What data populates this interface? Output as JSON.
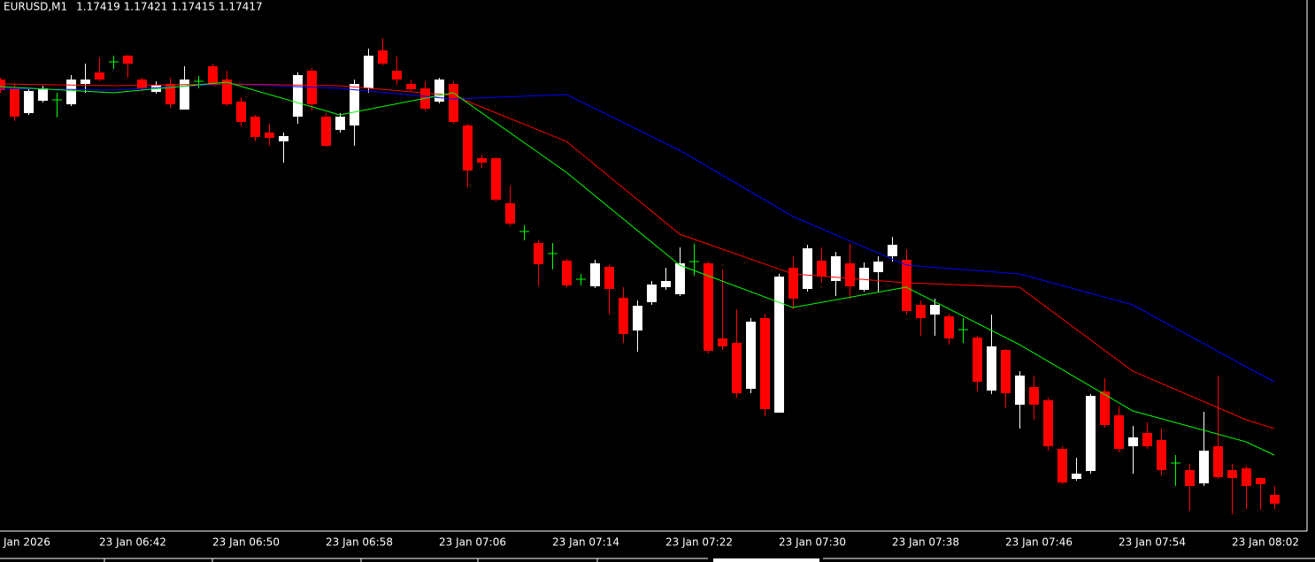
{
  "chart_data": {
    "type": "candlestick",
    "title": "EURUSD,M1",
    "header_values": [
      1.17419,
      1.17421,
      1.17415,
      1.17417
    ],
    "axis_start_label": "Jan 2026",
    "up_color": "#ffffff",
    "down_color": "#ff0000",
    "doji_color": "#00ff00",
    "ylim": [
      1.1738,
      1.1798
    ],
    "categories": [
      null,
      null,
      null,
      null,
      null,
      null,
      null,
      "23 Jan 06:42",
      null,
      null,
      null,
      null,
      null,
      null,
      null,
      "23 Jan 06:50",
      null,
      null,
      null,
      null,
      null,
      null,
      null,
      "23 Jan 06:58",
      null,
      null,
      null,
      null,
      null,
      null,
      null,
      "23 Jan 07:06",
      null,
      null,
      null,
      null,
      null,
      null,
      null,
      "23 Jan 07:14",
      null,
      null,
      null,
      null,
      null,
      null,
      null,
      "23 Jan 07:22",
      null,
      null,
      null,
      null,
      null,
      null,
      null,
      "23 Jan 07:30",
      null,
      null,
      null,
      null,
      null,
      null,
      null,
      "23 Jan 07:38",
      null,
      null,
      null,
      null,
      null,
      null,
      null,
      "23 Jan 07:46",
      null,
      null,
      null,
      null,
      null,
      null,
      null,
      "23 Jan 07:54",
      null,
      null,
      null,
      null,
      null,
      null,
      null,
      "23 Jan 08:02",
      null,
      null,
      null
    ],
    "candles": [
      [
        1.1789,
        1.17892,
        1.17875,
        1.17878
      ],
      [
        1.1788,
        1.17885,
        1.17843,
        1.17848
      ],
      [
        1.17852,
        1.1788,
        1.1785,
        1.17877
      ],
      [
        1.17866,
        1.17883,
        1.17864,
        1.1788
      ],
      [
        1.17867,
        1.17875,
        1.17847,
        1.17867
      ],
      [
        1.17862,
        1.17895,
        1.1786,
        1.1789
      ],
      [
        1.17885,
        1.17908,
        1.17875,
        1.1789
      ],
      [
        1.17898,
        1.17915,
        1.17888,
        1.1789
      ],
      [
        1.1791,
        1.17917,
        1.17902,
        1.1791
      ],
      [
        1.17917,
        1.17918,
        1.17892,
        1.17908
      ],
      [
        1.1789,
        1.17892,
        1.17877,
        1.1788
      ],
      [
        1.17876,
        1.17888,
        1.17874,
        1.17884
      ],
      [
        1.17885,
        1.17892,
        1.17858,
        1.17862
      ],
      [
        1.17856,
        1.17905,
        1.17856,
        1.1789
      ],
      [
        1.17888,
        1.17894,
        1.1788,
        1.17888
      ],
      [
        1.17905,
        1.17908,
        1.17883,
        1.17885
      ],
      [
        1.1789,
        1.179,
        1.1786,
        1.17862
      ],
      [
        1.17865,
        1.1787,
        1.17837,
        1.17842
      ],
      [
        1.17848,
        1.1785,
        1.1782,
        1.17825
      ],
      [
        1.1783,
        1.1784,
        1.17815,
        1.17824
      ],
      [
        1.1782,
        1.1783,
        1.17796,
        1.17826
      ],
      [
        1.17848,
        1.17898,
        1.1784,
        1.17895
      ],
      [
        1.179,
        1.17903,
        1.17855,
        1.17862
      ],
      [
        1.17848,
        1.17852,
        1.17814,
        1.17815
      ],
      [
        1.17833,
        1.17852,
        1.1783,
        1.17848
      ],
      [
        1.17838,
        1.1789,
        1.17815,
        1.17885
      ],
      [
        1.1788,
        1.17925,
        1.17875,
        1.17917
      ],
      [
        1.17923,
        1.17937,
        1.17906,
        1.17908
      ],
      [
        1.179,
        1.17916,
        1.17884,
        1.1789
      ],
      [
        1.17885,
        1.1789,
        1.17877,
        1.17879
      ],
      [
        1.1788,
        1.17888,
        1.17855,
        1.17857
      ],
      [
        1.17865,
        1.17892,
        1.17863,
        1.1789
      ],
      [
        1.17885,
        1.17888,
        1.1784,
        1.17842
      ],
      [
        1.17838,
        1.1784,
        1.17768,
        1.17787
      ],
      [
        1.17801,
        1.17805,
        1.1779,
        1.17796
      ],
      [
        1.17801,
        1.17802,
        1.17752,
        1.17754
      ],
      [
        1.1775,
        1.1777,
        1.17724,
        1.17727
      ],
      [
        1.17718,
        1.17725,
        1.17708,
        1.17718
      ],
      [
        1.17705,
        1.17708,
        1.17656,
        1.17681
      ],
      [
        1.17693,
        1.17705,
        1.17675,
        1.17693
      ],
      [
        1.17685,
        1.17687,
        1.17655,
        1.17657
      ],
      [
        1.17664,
        1.1767,
        1.17657,
        1.17664
      ],
      [
        1.17656,
        1.17686,
        1.17654,
        1.17682
      ],
      [
        1.17678,
        1.1768,
        1.17624,
        1.17653
      ],
      [
        1.17643,
        1.17655,
        1.17592,
        1.17602
      ],
      [
        1.17606,
        1.1764,
        1.17582,
        1.17634
      ],
      [
        1.17638,
        1.17662,
        1.17635,
        1.17658
      ],
      [
        1.17655,
        1.17677,
        1.17652,
        1.17662
      ],
      [
        1.17647,
        1.177,
        1.17645,
        1.17682
      ],
      [
        1.17684,
        1.17704,
        1.17668,
        1.17684
      ],
      [
        1.17682,
        1.17684,
        1.1758,
        1.17583
      ],
      [
        1.17597,
        1.17675,
        1.17584,
        1.17588
      ],
      [
        1.17592,
        1.1763,
        1.1753,
        1.17535
      ],
      [
        1.1754,
        1.1762,
        1.17535,
        1.17616
      ],
      [
        1.1762,
        1.17625,
        1.17509,
        1.17517
      ],
      [
        1.17513,
        1.1767,
        1.17513,
        1.17667
      ],
      [
        1.17677,
        1.1769,
        1.1763,
        1.17642
      ],
      [
        1.17653,
        1.17703,
        1.1765,
        1.17699
      ],
      [
        1.17685,
        1.177,
        1.1766,
        1.17667
      ],
      [
        1.17662,
        1.17695,
        1.17645,
        1.1769
      ],
      [
        1.17682,
        1.17704,
        1.17642,
        1.17656
      ],
      [
        1.17652,
        1.17683,
        1.1765,
        1.17677
      ],
      [
        1.17672,
        1.1769,
        1.1765,
        1.17684
      ],
      [
        1.1769,
        1.17712,
        1.17684,
        1.17703
      ],
      [
        1.17686,
        1.17698,
        1.17624,
        1.17628
      ],
      [
        1.17635,
        1.1764,
        1.176,
        1.1762
      ],
      [
        1.17624,
        1.17642,
        1.176,
        1.17635
      ],
      [
        1.17622,
        1.17625,
        1.1759,
        1.17597
      ],
      [
        1.17607,
        1.1762,
        1.17592,
        1.17607
      ],
      [
        1.17598,
        1.176,
        1.17537,
        1.17548
      ],
      [
        1.17538,
        1.17624,
        1.17534,
        1.17588
      ],
      [
        1.17584,
        1.17585,
        1.17518,
        1.17535
      ],
      [
        1.17522,
        1.1756,
        1.17495,
        1.17555
      ],
      [
        1.17542,
        1.17555,
        1.17505,
        1.17522
      ],
      [
        1.17527,
        1.1753,
        1.1747,
        1.17475
      ],
      [
        1.17472,
        1.17475,
        1.17432,
        1.17434
      ],
      [
        1.17438,
        1.17462,
        1.17436,
        1.17444
      ],
      [
        1.17447,
        1.17534,
        1.17444,
        1.17532
      ],
      [
        1.17537,
        1.17552,
        1.17496,
        1.17499
      ],
      [
        1.1751,
        1.1752,
        1.17468,
        1.17472
      ],
      [
        1.17475,
        1.17498,
        1.17444,
        1.17485
      ],
      [
        1.1749,
        1.17502,
        1.17472,
        1.17475
      ],
      [
        1.17482,
        1.17495,
        1.17442,
        1.17448
      ],
      [
        1.17456,
        1.17465,
        1.1743,
        1.17456
      ],
      [
        1.17448,
        1.17455,
        1.17402,
        1.1743
      ],
      [
        1.17433,
        1.17514,
        1.1743,
        1.1747
      ],
      [
        1.17475,
        1.17555,
        1.17438,
        1.1744
      ],
      [
        1.17448,
        1.17455,
        1.17398,
        1.17439
      ],
      [
        1.1745,
        1.17453,
        1.17404,
        1.1743
      ],
      [
        1.17439,
        1.1744,
        1.17403,
        1.17432
      ],
      [
        1.1742,
        1.1743,
        1.17404,
        1.1741
      ]
    ],
    "series": [
      {
        "color": "#0000ff",
        "x": [
          0,
          8,
          16,
          24,
          32,
          40,
          48,
          56,
          64,
          72,
          80,
          88,
          90
        ],
        "values": [
          1.1788,
          1.17878,
          1.17885,
          1.1788,
          1.17868,
          1.17873,
          1.1781,
          1.17735,
          1.1768,
          1.1767,
          1.17635,
          1.17565,
          1.17548
        ]
      },
      {
        "color": "#ff0000",
        "x": [
          0,
          8,
          16,
          24,
          32,
          40,
          48,
          56,
          64,
          72,
          80,
          88,
          90
        ],
        "values": [
          1.17885,
          1.17883,
          1.17885,
          1.17883,
          1.17872,
          1.1782,
          1.17715,
          1.1767,
          1.1766,
          1.17655,
          1.1756,
          1.17505,
          1.17495
        ]
      },
      {
        "color": "#00ff00",
        "x": [
          0,
          8,
          16,
          24,
          32,
          40,
          48,
          56,
          64,
          72,
          80,
          88,
          90
        ],
        "values": [
          1.17882,
          1.17875,
          1.17887,
          1.1785,
          1.17875,
          1.17785,
          1.1768,
          1.17632,
          1.17655,
          1.1759,
          1.17515,
          1.1748,
          1.17465
        ]
      }
    ]
  }
}
